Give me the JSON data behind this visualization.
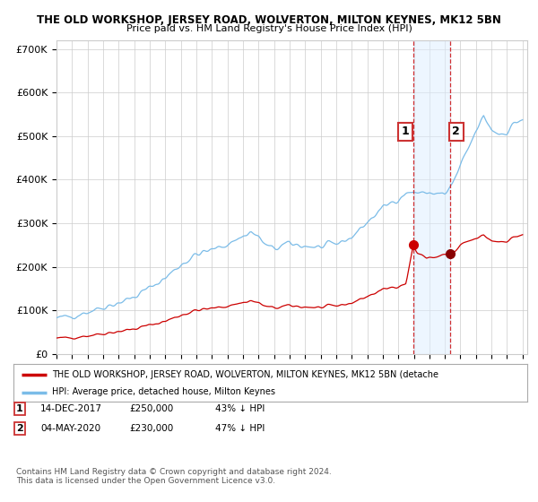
{
  "title": "THE OLD WORKSHOP, JERSEY ROAD, WOLVERTON, MILTON KEYNES, MK12 5BN",
  "subtitle": "Price paid vs. HM Land Registry's House Price Index (HPI)",
  "ylabel_ticks": [
    "£0",
    "£100K",
    "£200K",
    "£300K",
    "£400K",
    "£500K",
    "£600K",
    "£700K"
  ],
  "ytick_values": [
    0,
    100000,
    200000,
    300000,
    400000,
    500000,
    600000,
    700000
  ],
  "ylim": [
    0,
    720000
  ],
  "hpi_color": "#7bbce8",
  "price_color": "#cc0000",
  "sale1_year": 2017.96,
  "sale1_price": 250000,
  "sale2_year": 2020.33,
  "sale2_price": 230000,
  "shade_color": "#ddeeff",
  "shade_alpha": 0.5,
  "legend_red_label": "THE OLD WORKSHOP, JERSEY ROAD, WOLVERTON, MILTON KEYNES, MK12 5BN (detache",
  "legend_blue_label": "HPI: Average price, detached house, Milton Keynes",
  "footer": "Contains HM Land Registry data © Crown copyright and database right 2024.\nThis data is licensed under the Open Government Licence v3.0.",
  "background_color": "#ffffff",
  "grid_color": "#cccccc"
}
